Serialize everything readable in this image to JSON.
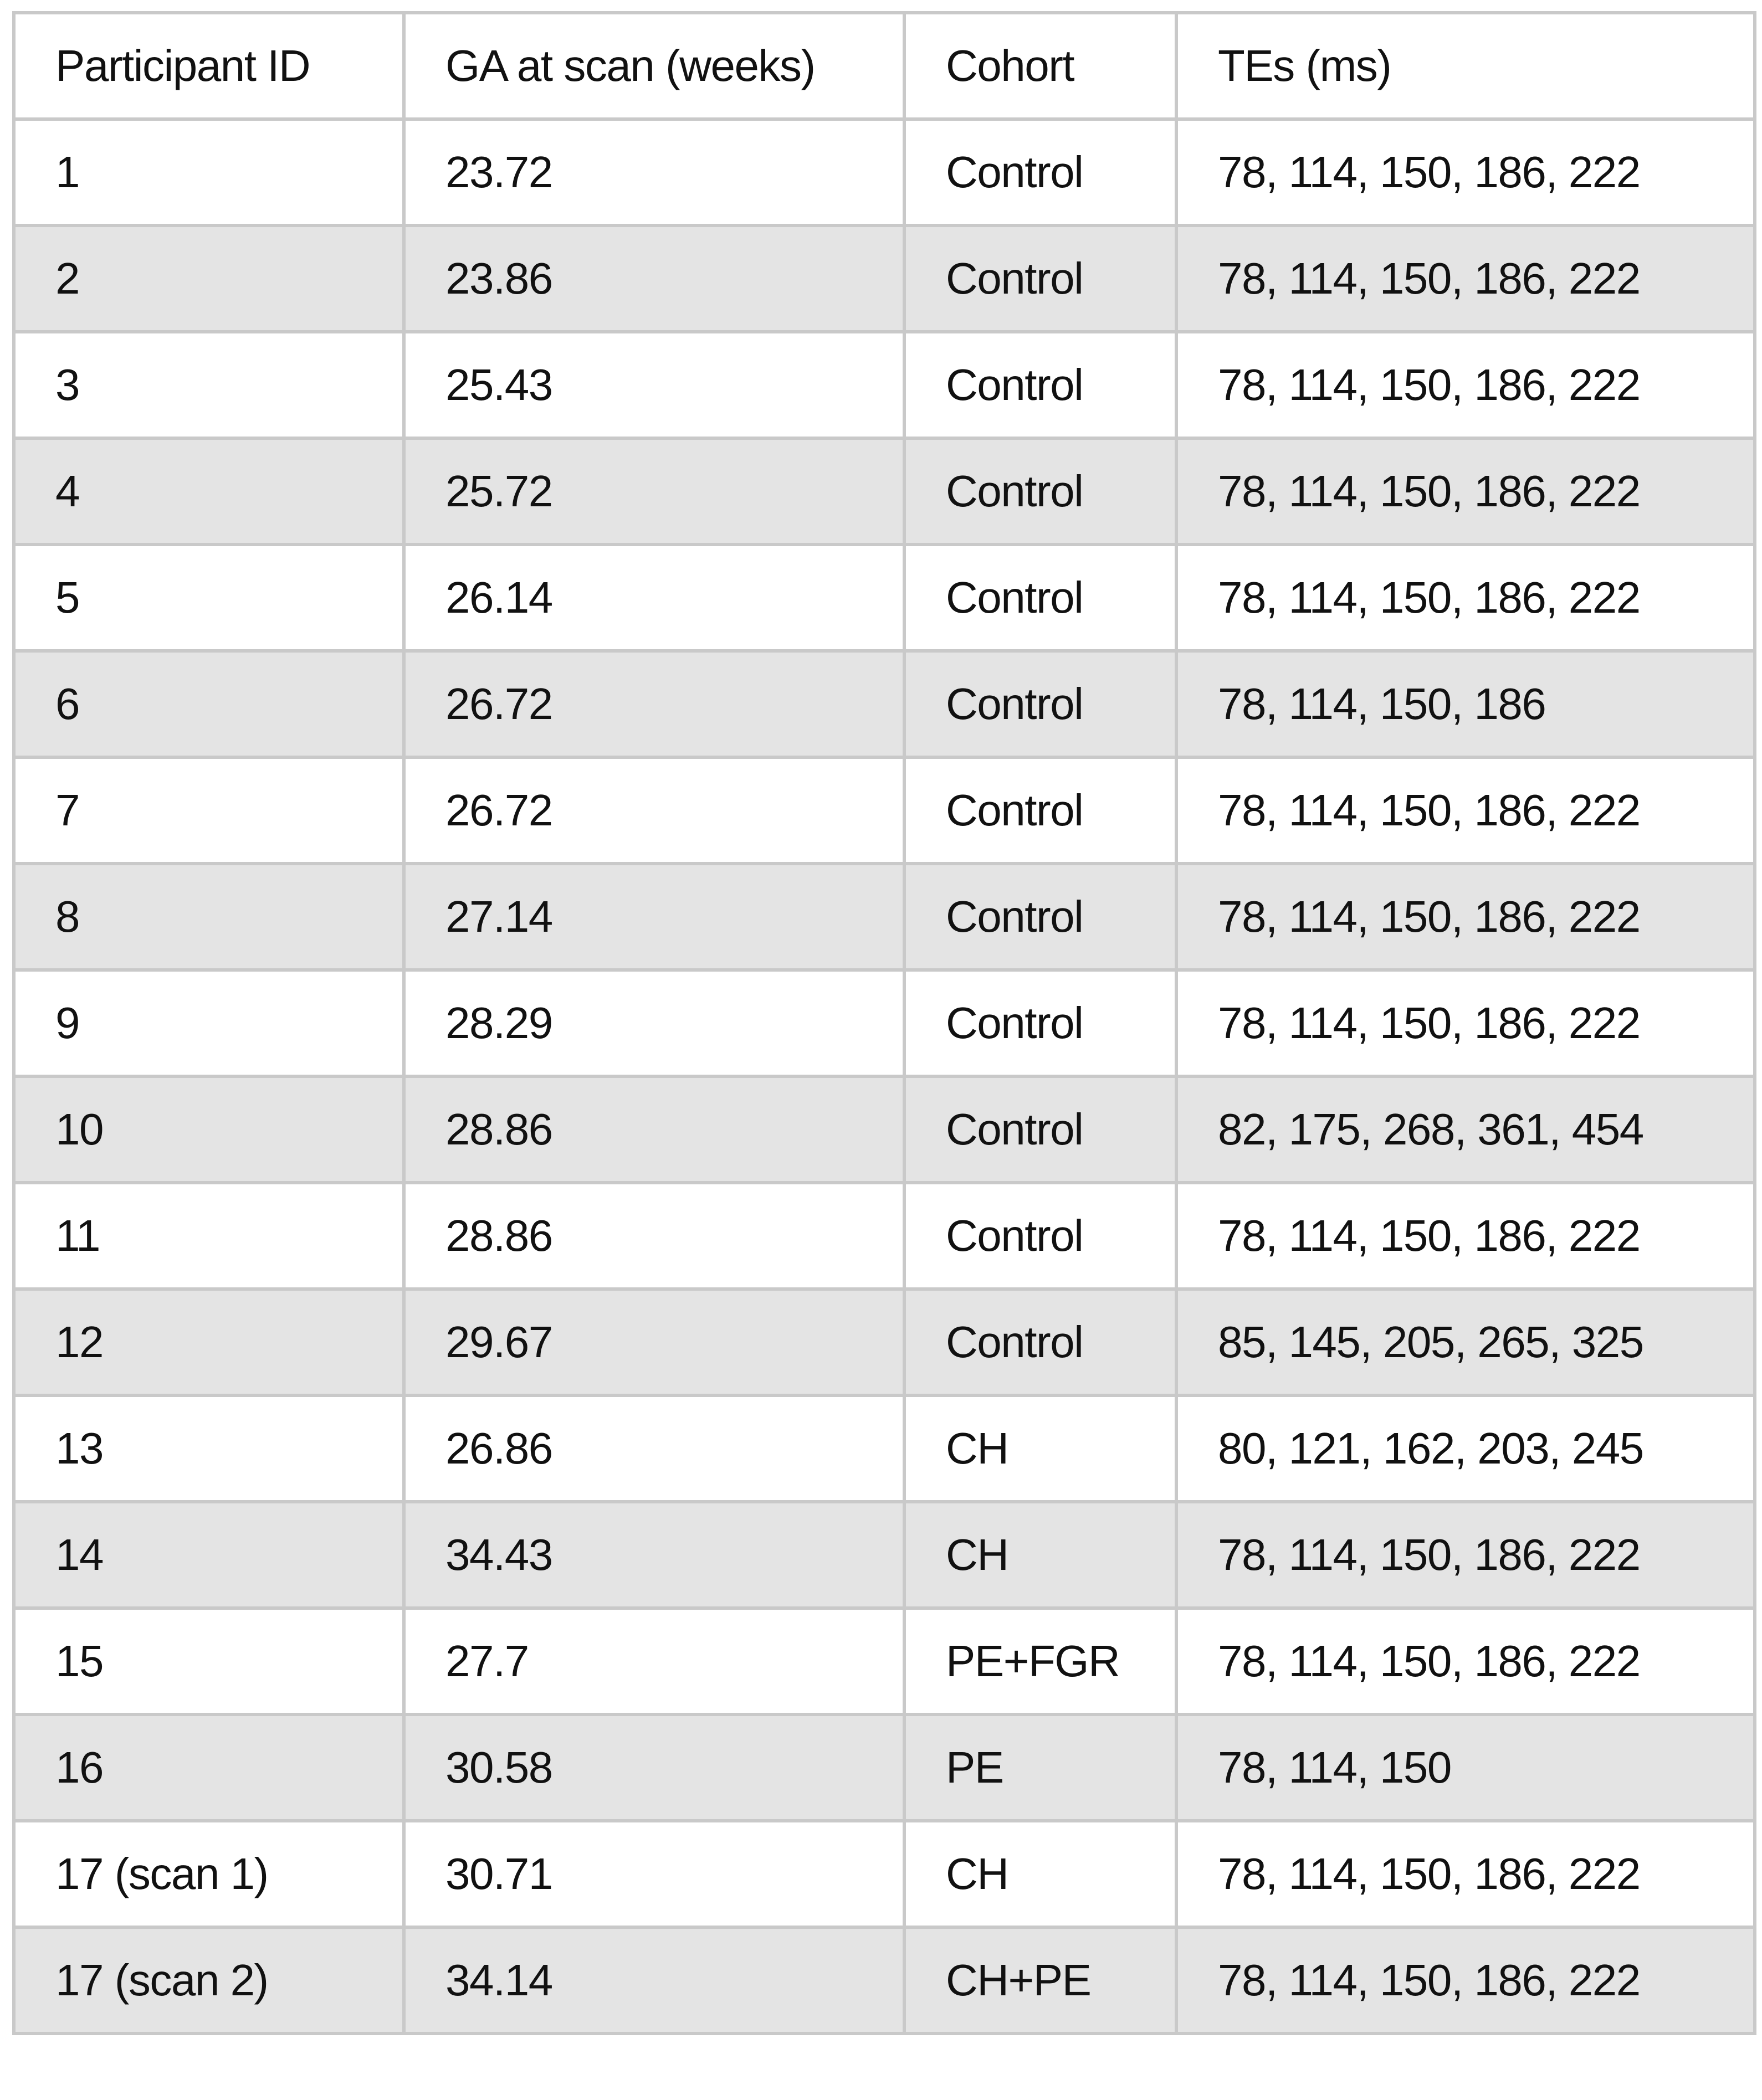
{
  "table": {
    "headers": [
      "Participant ID",
      "GA at scan (weeks)",
      "Cohort",
      "TEs (ms)"
    ],
    "rows": [
      [
        "1",
        "23.72",
        "Control",
        "78, 114, 150, 186, 222"
      ],
      [
        "2",
        "23.86",
        "Control",
        "78, 114, 150, 186, 222"
      ],
      [
        "3",
        "25.43",
        "Control",
        "78, 114, 150, 186, 222"
      ],
      [
        "4",
        "25.72",
        "Control",
        "78, 114, 150, 186, 222"
      ],
      [
        "5",
        "26.14",
        "Control",
        "78, 114, 150, 186, 222"
      ],
      [
        "6",
        "26.72",
        "Control",
        "78, 114, 150, 186"
      ],
      [
        "7",
        "26.72",
        "Control",
        "78, 114, 150, 186, 222"
      ],
      [
        "8",
        "27.14",
        "Control",
        "78, 114, 150, 186, 222"
      ],
      [
        "9",
        "28.29",
        "Control",
        "78, 114, 150, 186, 222"
      ],
      [
        "10",
        "28.86",
        "Control",
        "82, 175, 268, 361, 454"
      ],
      [
        "11",
        "28.86",
        "Control",
        "78, 114, 150, 186, 222"
      ],
      [
        "12",
        "29.67",
        "Control",
        "85, 145, 205, 265, 325"
      ],
      [
        "13",
        "26.86",
        "CH",
        "80, 121, 162, 203, 245"
      ],
      [
        "14",
        "34.43",
        "CH",
        "78, 114, 150, 186, 222"
      ],
      [
        "15",
        "27.7",
        "PE+FGR",
        "78, 114, 150, 186, 222"
      ],
      [
        "16",
        "30.58",
        "PE",
        "78, 114, 150"
      ],
      [
        "17 (scan 1)",
        "30.71",
        "CH",
        "78, 114, 150, 186, 222"
      ],
      [
        "17 (scan 2)",
        "34.14",
        "CH+PE",
        "78, 114, 150, 186, 222"
      ]
    ]
  },
  "colors": {
    "border": "#c9c9c9",
    "stripe": "#e4e4e4",
    "text": "#111111"
  }
}
